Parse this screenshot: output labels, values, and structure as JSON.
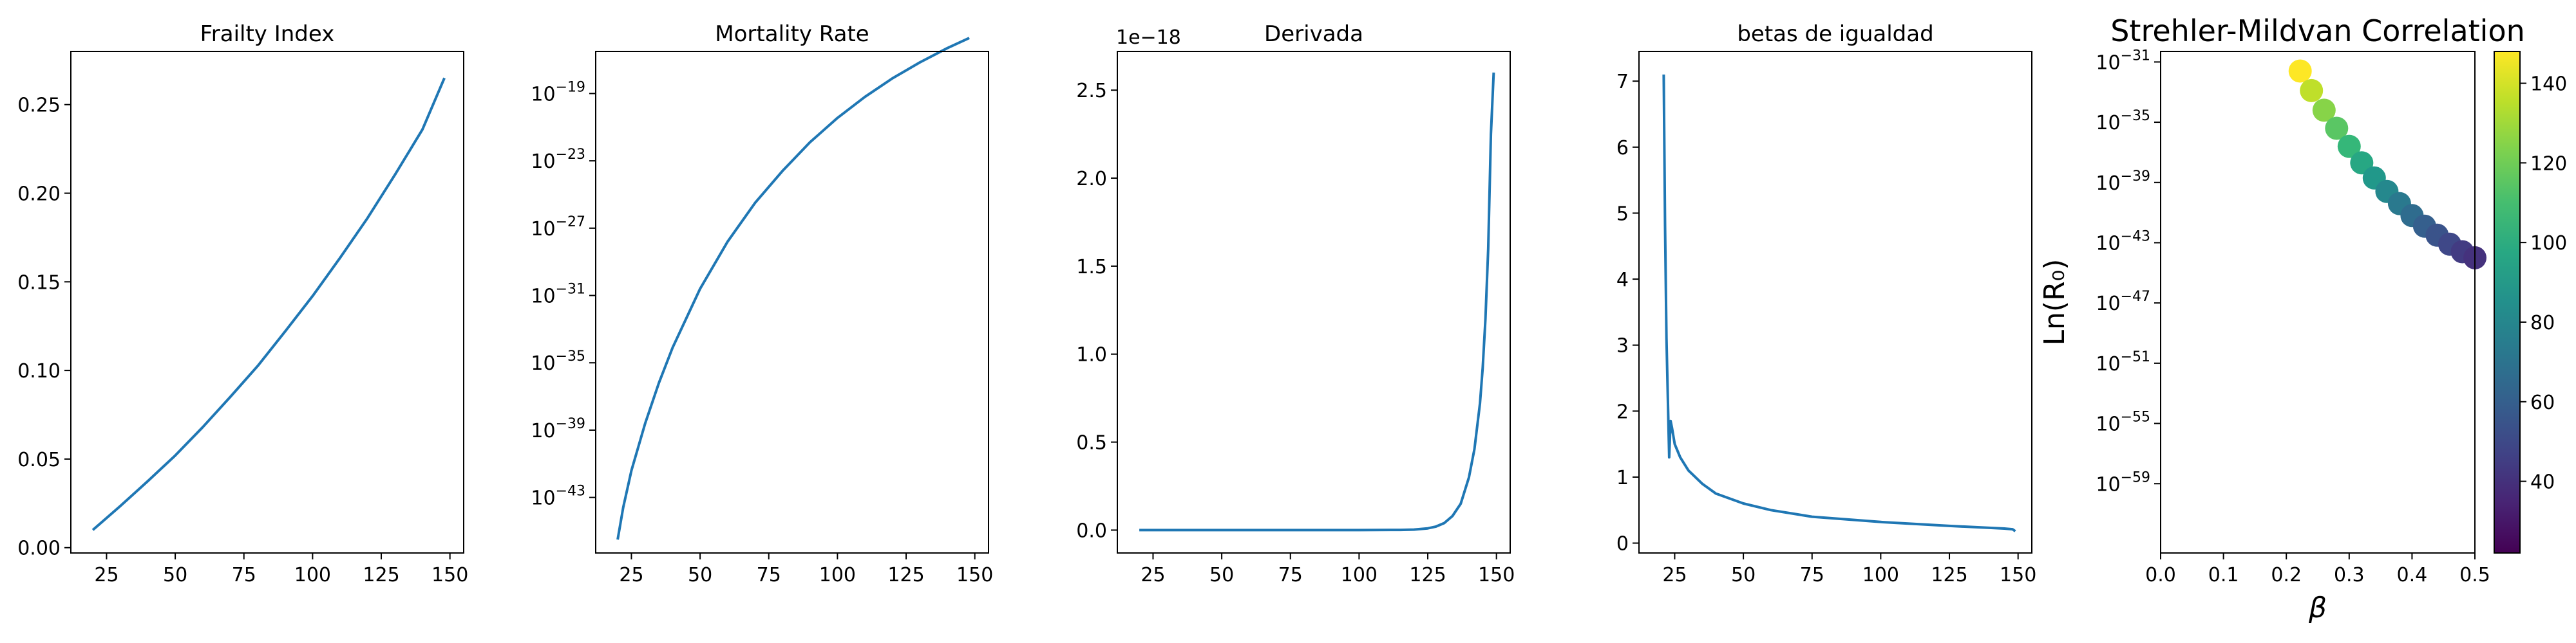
{
  "chart_data": [
    {
      "type": "line",
      "title": "Frailty Index",
      "xlabel": "",
      "ylabel": "",
      "xlim": [
        12,
        155
      ],
      "ylim": [
        -0.003,
        0.28
      ],
      "xticks": [
        25,
        50,
        75,
        100,
        125,
        150
      ],
      "xtick_labels": [
        "25",
        "50",
        "75",
        "100",
        "125",
        "150"
      ],
      "yticks": [
        0,
        0.05,
        0.1,
        0.15,
        0.2,
        0.25
      ],
      "ytick_labels": [
        "0.00",
        "0.05",
        "0.10",
        "0.15",
        "0.20",
        "0.25"
      ],
      "x": [
        20,
        30,
        40,
        50,
        60,
        70,
        80,
        90,
        100,
        110,
        120,
        130,
        140,
        148
      ],
      "y": [
        0.01,
        0.0235,
        0.0375,
        0.052,
        0.068,
        0.085,
        0.1025,
        0.122,
        0.142,
        0.1635,
        0.186,
        0.2105,
        0.236,
        0.265
      ]
    },
    {
      "type": "line",
      "title": "Mortality Rate",
      "xlabel": "",
      "ylabel": "",
      "yscale": "log",
      "xlim": [
        12,
        155
      ],
      "ylim": [
        -46.3,
        -16.5
      ],
      "xticks": [
        25,
        50,
        75,
        100,
        125,
        150
      ],
      "xtick_labels": [
        "25",
        "50",
        "75",
        "100",
        "125",
        "150"
      ],
      "yticks_exp": [
        -43,
        -39,
        -35,
        -31,
        -27,
        -23,
        -19
      ],
      "ytick_base": "10",
      "x": [
        20,
        22,
        25,
        30,
        35,
        40,
        50,
        60,
        70,
        80,
        90,
        100,
        110,
        120,
        130,
        140,
        148
      ],
      "y_log10": [
        -45.5,
        -43.6,
        -41.4,
        -38.6,
        -36.2,
        -34.1,
        -30.6,
        -27.8,
        -25.5,
        -23.6,
        -21.9,
        -20.45,
        -19.2,
        -18.1,
        -17.15,
        -16.3,
        -15.7
      ]
    },
    {
      "type": "line",
      "title": "Derivada",
      "xlabel": "",
      "ylabel": "",
      "offset_text": "1e−18",
      "xlim": [
        12,
        155
      ],
      "ylim": [
        -0.13,
        2.72
      ],
      "xticks": [
        25,
        50,
        75,
        100,
        125,
        150
      ],
      "xtick_labels": [
        "25",
        "50",
        "75",
        "100",
        "125",
        "150"
      ],
      "yticks": [
        0,
        0.5,
        1.0,
        1.5,
        2.0,
        2.5
      ],
      "ytick_labels": [
        "0.0",
        "0.5",
        "1.0",
        "1.5",
        "2.0",
        "2.5"
      ],
      "x": [
        20,
        60,
        100,
        115,
        120,
        125,
        128,
        131,
        134,
        137,
        140,
        142,
        144,
        145,
        146,
        147,
        148,
        149
      ],
      "y": [
        0,
        0,
        0,
        0.001,
        0.003,
        0.01,
        0.02,
        0.04,
        0.08,
        0.15,
        0.3,
        0.46,
        0.72,
        0.92,
        1.2,
        1.6,
        2.25,
        2.6
      ]
    },
    {
      "type": "line",
      "title": "betas de igualdad",
      "xlabel": "",
      "ylabel": "",
      "xlim": [
        12,
        155
      ],
      "ylim": [
        -0.15,
        7.45
      ],
      "xticks": [
        25,
        50,
        75,
        100,
        125,
        150
      ],
      "xtick_labels": [
        "25",
        "50",
        "75",
        "100",
        "125",
        "150"
      ],
      "yticks": [
        0,
        1,
        2,
        3,
        4,
        5,
        6,
        7
      ],
      "ytick_labels": [
        "0",
        "1",
        "2",
        "3",
        "4",
        "5",
        "6",
        "7"
      ],
      "x": [
        21,
        21.5,
        22,
        22.5,
        23,
        23.5,
        24,
        25,
        27,
        30,
        35,
        40,
        50,
        60,
        75,
        100,
        125,
        145,
        148,
        149
      ],
      "y": [
        7.1,
        4.8,
        3.1,
        2.2,
        1.3,
        1.85,
        1.75,
        1.5,
        1.3,
        1.1,
        0.9,
        0.75,
        0.6,
        0.5,
        0.4,
        0.32,
        0.26,
        0.22,
        0.21,
        0.18
      ]
    },
    {
      "type": "scatter",
      "title": "Strehler-Mildvan Correlation",
      "xlabel": "β",
      "ylabel": "Ln(R₀)",
      "yscale": "log",
      "xlim": [
        0,
        0.5
      ],
      "ylim": [
        -63.6,
        -30.3
      ],
      "xticks": [
        0,
        0.1,
        0.2,
        0.3,
        0.4,
        0.5
      ],
      "xtick_labels": [
        "0.0",
        "0.1",
        "0.2",
        "0.3",
        "0.4",
        "0.5"
      ],
      "yticks_exp": [
        -59,
        -55,
        -51,
        -47,
        -43,
        -39,
        -35,
        -31
      ],
      "ytick_base": "10",
      "x": [
        0.222,
        0.24,
        0.26,
        0.28,
        0.3,
        0.32,
        0.34,
        0.36,
        0.38,
        0.4,
        0.42,
        0.44,
        0.46,
        0.48,
        0.5
      ],
      "y_log10": [
        -31.6,
        -32.9,
        -34.2,
        -35.4,
        -36.6,
        -37.7,
        -38.7,
        -39.6,
        -40.4,
        -41.2,
        -41.9,
        -42.5,
        -43.1,
        -43.6,
        -44.0
      ],
      "color_values": [
        148,
        136,
        125,
        115,
        106,
        97,
        89,
        81,
        73,
        66,
        60,
        54,
        49,
        44,
        40
      ],
      "colorbar": {
        "colormap": "viridis",
        "range": [
          22,
          148
        ],
        "ticks": [
          40,
          60,
          80,
          100,
          120,
          140
        ],
        "tick_labels": [
          "40",
          "60",
          "80",
          "100",
          "120",
          "140"
        ]
      }
    }
  ]
}
